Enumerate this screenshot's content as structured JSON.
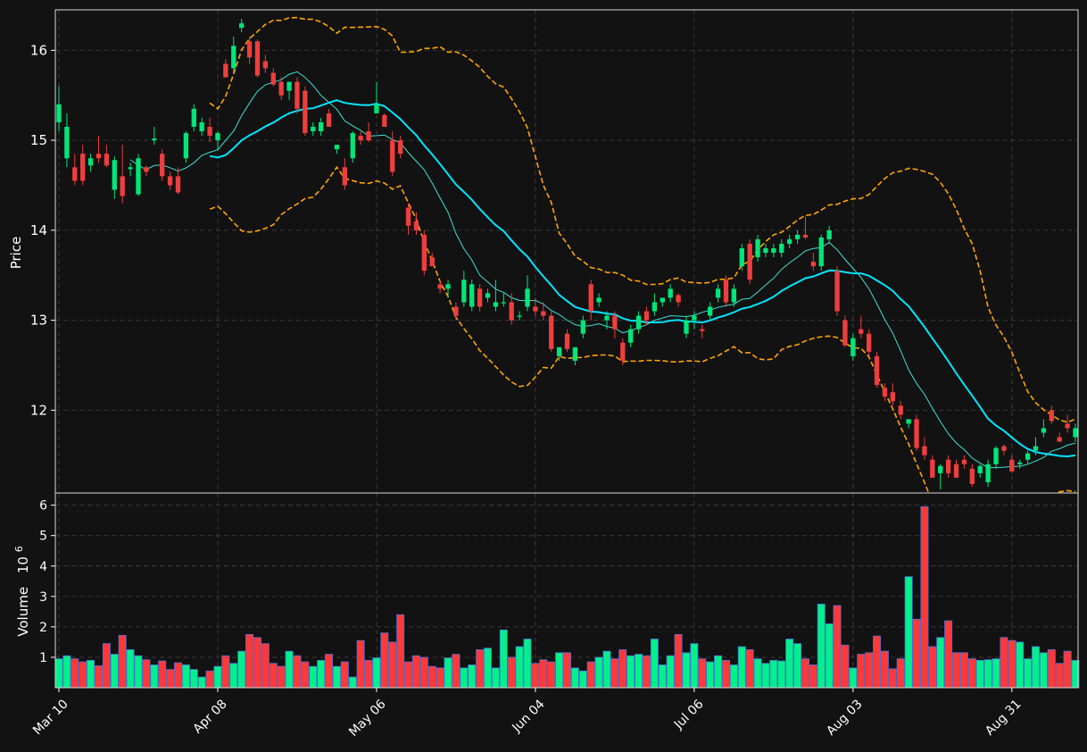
{
  "chart_data": {
    "type": "candlestick",
    "x_ticks": [
      "Mar 10",
      "Apr 08",
      "May 06",
      "Jun 04",
      "Jul 06",
      "Aug 03",
      "Aug 31"
    ],
    "x_tick_index": [
      0,
      20,
      40,
      60,
      80,
      100,
      120
    ],
    "price_axis": {
      "label": "Price",
      "ticks": [
        12,
        13,
        14,
        15,
        16
      ],
      "ylim": [
        11.08,
        16.45
      ]
    },
    "volume_axis": {
      "label": "Volume",
      "scale_label": "10",
      "scale_exp": "6",
      "ticks": [
        1,
        2,
        3,
        4,
        5,
        6
      ],
      "ylim": [
        0,
        6.4
      ]
    },
    "grid": true,
    "colors": {
      "background": "#121212",
      "up": "#00e67a",
      "down": "#ee3e3e",
      "vol_up": "#00f08c",
      "vol_down": "#ff3838",
      "vol_edge": "#4e6fd6",
      "ma_fast": "#3ee0d4",
      "ma_slow": "#00e5ff",
      "bands": "#ffa500",
      "grid": "#3a3a3a",
      "frame": "#d8d8d8",
      "text": "#ffffff"
    },
    "candles": [
      [
        15.2,
        15.6,
        15.1,
        15.4,
        0.95
      ],
      [
        14.8,
        15.3,
        14.7,
        15.15,
        1.05
      ],
      [
        14.7,
        14.85,
        14.5,
        14.55,
        0.95
      ],
      [
        14.85,
        14.95,
        14.5,
        14.55,
        0.85
      ],
      [
        14.72,
        14.85,
        14.65,
        14.8,
        0.9
      ],
      [
        14.85,
        15.05,
        14.75,
        14.8,
        0.72
      ],
      [
        14.85,
        14.95,
        14.7,
        14.72,
        1.45
      ],
      [
        14.45,
        14.82,
        14.35,
        14.78,
        1.1
      ],
      [
        14.6,
        14.95,
        14.3,
        14.38,
        1.72
      ],
      [
        14.68,
        14.75,
        14.6,
        14.7,
        1.25
      ],
      [
        14.4,
        14.85,
        14.38,
        14.8,
        1.05
      ],
      [
        14.7,
        14.72,
        14.6,
        14.65,
        0.92
      ],
      [
        15.0,
        15.15,
        14.95,
        15.02,
        0.75
      ],
      [
        14.85,
        14.9,
        14.55,
        14.6,
        0.88
      ],
      [
        14.6,
        14.65,
        14.45,
        14.5,
        0.6
      ],
      [
        14.6,
        14.7,
        14.4,
        14.42,
        0.82
      ],
      [
        14.8,
        15.1,
        14.75,
        15.08,
        0.75
      ],
      [
        15.15,
        15.4,
        15.1,
        15.35,
        0.6
      ],
      [
        15.1,
        15.25,
        15.05,
        15.2,
        0.35
      ],
      [
        15.15,
        15.25,
        14.98,
        15.05,
        0.55
      ],
      [
        15.0,
        15.1,
        14.9,
        15.08,
        0.7
      ],
      [
        15.85,
        15.9,
        15.7,
        15.7,
        1.05
      ],
      [
        15.8,
        16.15,
        15.75,
        16.05,
        0.8
      ],
      [
        16.25,
        16.35,
        16.2,
        16.3,
        1.2
      ],
      [
        16.1,
        16.15,
        15.85,
        15.92,
        1.75
      ],
      [
        16.1,
        16.12,
        15.7,
        15.72,
        1.65
      ],
      [
        15.88,
        15.95,
        15.75,
        15.8,
        1.45
      ],
      [
        15.75,
        15.8,
        15.6,
        15.62,
        0.8
      ],
      [
        15.65,
        15.7,
        15.45,
        15.5,
        0.7
      ],
      [
        15.55,
        15.65,
        15.45,
        15.65,
        1.2
      ],
      [
        15.65,
        15.7,
        15.3,
        15.35,
        1.05
      ],
      [
        15.55,
        15.6,
        15.05,
        15.08,
        0.85
      ],
      [
        15.1,
        15.2,
        15.05,
        15.15,
        0.7
      ],
      [
        15.1,
        15.25,
        15.05,
        15.2,
        0.9
      ],
      [
        15.3,
        15.35,
        15.15,
        15.15,
        1.1
      ],
      [
        14.9,
        14.95,
        14.85,
        14.95,
        0.7
      ],
      [
        14.7,
        14.8,
        14.45,
        14.5,
        0.85
      ],
      [
        14.8,
        15.1,
        14.75,
        15.08,
        0.35
      ],
      [
        15.05,
        15.1,
        14.95,
        15.0,
        1.55
      ],
      [
        15.1,
        15.2,
        14.98,
        15.0,
        0.9
      ],
      [
        15.3,
        15.65,
        15.3,
        15.4,
        0.98
      ],
      [
        15.28,
        15.3,
        15.15,
        15.15,
        1.8
      ],
      [
        15.0,
        15.1,
        14.6,
        14.65,
        1.5
      ],
      [
        15.0,
        15.05,
        14.8,
        14.85,
        2.4
      ],
      [
        14.25,
        14.3,
        13.95,
        14.05,
        0.85
      ],
      [
        14.1,
        14.2,
        13.95,
        14.0,
        1.05
      ],
      [
        13.95,
        14.0,
        13.5,
        13.55,
        1.0
      ],
      [
        13.7,
        13.75,
        13.6,
        13.6,
        0.7
      ],
      [
        13.4,
        13.45,
        13.3,
        13.35,
        0.65
      ],
      [
        13.35,
        13.45,
        13.25,
        13.4,
        0.98
      ],
      [
        13.15,
        13.2,
        13.0,
        13.05,
        1.1
      ],
      [
        13.2,
        13.55,
        13.15,
        13.45,
        0.65
      ],
      [
        13.15,
        13.45,
        13.1,
        13.4,
        0.75
      ],
      [
        13.35,
        13.4,
        13.1,
        13.15,
        1.25
      ],
      [
        13.25,
        13.35,
        13.2,
        13.3,
        1.3
      ],
      [
        13.15,
        13.45,
        13.1,
        13.2,
        0.65
      ],
      [
        13.2,
        13.3,
        13.15,
        13.2,
        1.9
      ],
      [
        13.2,
        13.3,
        12.95,
        13.0,
        1.0
      ],
      [
        13.05,
        13.1,
        13.0,
        13.05,
        1.35
      ],
      [
        13.15,
        13.5,
        13.1,
        13.35,
        1.6
      ],
      [
        13.15,
        13.25,
        13.05,
        13.1,
        0.8
      ],
      [
        13.1,
        13.2,
        13.0,
        13.05,
        0.92
      ],
      [
        13.05,
        13.1,
        12.65,
        12.68,
        0.85
      ],
      [
        12.6,
        12.7,
        12.55,
        12.7,
        1.15
      ],
      [
        12.85,
        12.9,
        12.65,
        12.68,
        1.15
      ],
      [
        12.55,
        12.7,
        12.5,
        12.7,
        0.65
      ],
      [
        12.85,
        13.05,
        12.8,
        13.0,
        0.55
      ],
      [
        13.4,
        13.45,
        13.0,
        13.1,
        0.85
      ],
      [
        13.2,
        13.3,
        13.15,
        13.25,
        1.0
      ],
      [
        13.0,
        13.1,
        12.9,
        13.05,
        1.2
      ],
      [
        13.05,
        13.1,
        12.8,
        12.9,
        0.95
      ],
      [
        12.75,
        12.8,
        12.5,
        12.55,
        1.25
      ],
      [
        12.75,
        12.95,
        12.7,
        12.9,
        1.05
      ],
      [
        12.9,
        13.1,
        12.85,
        13.05,
        1.1
      ],
      [
        13.1,
        13.15,
        12.95,
        13.0,
        1.05
      ],
      [
        13.1,
        13.3,
        13.05,
        13.2,
        1.6
      ],
      [
        13.2,
        13.25,
        13.15,
        13.25,
        0.75
      ],
      [
        13.25,
        13.4,
        13.2,
        13.35,
        1.05
      ],
      [
        13.28,
        13.3,
        13.15,
        13.2,
        1.75
      ],
      [
        12.85,
        13.05,
        12.8,
        13.0,
        1.15
      ],
      [
        13.0,
        13.1,
        12.9,
        13.05,
        1.45
      ],
      [
        12.9,
        12.95,
        12.8,
        12.88,
        0.95
      ],
      [
        13.05,
        13.2,
        13.0,
        13.15,
        0.85
      ],
      [
        13.25,
        13.4,
        13.2,
        13.35,
        1.05
      ],
      [
        13.45,
        13.5,
        13.15,
        13.2,
        0.9
      ],
      [
        13.2,
        13.4,
        13.15,
        13.35,
        0.75
      ],
      [
        13.6,
        13.85,
        13.55,
        13.8,
        1.35
      ],
      [
        13.85,
        13.9,
        13.4,
        13.45,
        1.25
      ],
      [
        13.7,
        13.95,
        13.65,
        13.9,
        0.95
      ],
      [
        13.75,
        13.85,
        13.7,
        13.8,
        0.8
      ],
      [
        13.75,
        13.85,
        13.7,
        13.8,
        0.9
      ],
      [
        13.75,
        13.9,
        13.7,
        13.85,
        0.88
      ],
      [
        13.85,
        13.95,
        13.8,
        13.9,
        1.6
      ],
      [
        13.9,
        14.0,
        13.85,
        13.95,
        1.45
      ],
      [
        13.95,
        14.15,
        13.9,
        13.92,
        0.95
      ],
      [
        13.65,
        13.75,
        13.55,
        13.6,
        0.75
      ],
      [
        13.6,
        13.95,
        13.55,
        13.92,
        2.75
      ],
      [
        13.9,
        14.05,
        13.85,
        14.0,
        2.1
      ],
      [
        13.55,
        13.6,
        13.05,
        13.1,
        2.7
      ],
      [
        13.0,
        13.05,
        12.7,
        12.72,
        1.4
      ],
      [
        12.6,
        12.85,
        12.55,
        12.8,
        0.65
      ],
      [
        12.9,
        13.05,
        12.8,
        12.85,
        1.1
      ],
      [
        12.85,
        12.9,
        12.6,
        12.65,
        1.15
      ],
      [
        12.6,
        12.65,
        12.25,
        12.28,
        1.7
      ],
      [
        12.25,
        12.3,
        12.1,
        12.15,
        1.2
      ],
      [
        12.2,
        12.3,
        12.05,
        12.1,
        0.62
      ],
      [
        12.05,
        12.1,
        11.9,
        11.95,
        0.95
      ],
      [
        11.85,
        11.9,
        11.8,
        11.9,
        3.65
      ],
      [
        11.9,
        11.95,
        11.55,
        11.58,
        2.25
      ],
      [
        11.6,
        11.7,
        11.45,
        11.5,
        5.95
      ],
      [
        11.45,
        11.5,
        11.25,
        11.25,
        1.35
      ],
      [
        11.3,
        11.4,
        11.12,
        11.38,
        1.65
      ],
      [
        11.45,
        11.5,
        11.25,
        11.3,
        2.2
      ],
      [
        11.4,
        11.45,
        11.25,
        11.25,
        1.15
      ],
      [
        11.45,
        11.5,
        11.35,
        11.4,
        1.15
      ],
      [
        11.35,
        11.4,
        11.15,
        11.18,
        0.95
      ],
      [
        11.3,
        11.4,
        11.25,
        11.38,
        0.9
      ],
      [
        11.2,
        11.45,
        11.15,
        11.4,
        0.92
      ],
      [
        11.4,
        11.6,
        11.35,
        11.58,
        0.95
      ],
      [
        11.6,
        11.62,
        11.5,
        11.55,
        1.65
      ],
      [
        11.45,
        11.5,
        11.3,
        11.32,
        1.55
      ],
      [
        11.4,
        11.45,
        11.35,
        11.42,
        1.5
      ],
      [
        11.45,
        11.55,
        11.4,
        11.52,
        0.95
      ],
      [
        11.55,
        11.7,
        11.5,
        11.6,
        1.35
      ],
      [
        11.75,
        11.9,
        11.7,
        11.8,
        1.15
      ],
      [
        12.0,
        12.05,
        11.85,
        11.88,
        1.25
      ],
      [
        11.7,
        11.75,
        11.65,
        11.65,
        0.8
      ],
      [
        11.85,
        11.95,
        11.75,
        11.8,
        1.2
      ],
      [
        11.7,
        11.85,
        11.65,
        11.8,
        0.9
      ]
    ]
  },
  "labels": {
    "ylabel_price": "Price",
    "ylabel_volume": "Volume",
    "volume_scale": "10",
    "volume_exp": "6"
  }
}
